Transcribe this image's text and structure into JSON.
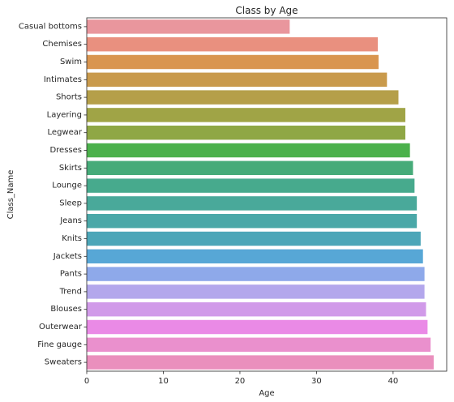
{
  "chart_data": {
    "type": "bar",
    "orientation": "horizontal",
    "title": "Class by Age",
    "xlabel": "Age",
    "ylabel": "Class_Name",
    "xlim": [
      0,
      47
    ],
    "xticks": [
      0,
      10,
      20,
      30,
      40
    ],
    "grid": false,
    "legend": "none",
    "categories": [
      "Casual bottoms",
      "Chemises",
      "Swim",
      "Intimates",
      "Shorts",
      "Layering",
      "Legwear",
      "Dresses",
      "Skirts",
      "Lounge",
      "Sleep",
      "Jeans",
      "Knits",
      "Jackets",
      "Pants",
      "Trend",
      "Blouses",
      "Outerwear",
      "Fine gauge",
      "Sweaters"
    ],
    "values": [
      26.5,
      38.0,
      38.1,
      39.2,
      40.7,
      41.6,
      41.6,
      42.2,
      42.6,
      42.8,
      43.1,
      43.1,
      43.6,
      43.9,
      44.1,
      44.1,
      44.3,
      44.5,
      44.9,
      45.3
    ],
    "colors": [
      "#e9969d",
      "#e9907f",
      "#d9954f",
      "#c99a4c",
      "#b59f49",
      "#a0a446",
      "#8fa745",
      "#4bb14b",
      "#46ab79",
      "#47aa8d",
      "#49a99a",
      "#4aa8a8",
      "#4ca6b8",
      "#57a7d6",
      "#8ea9ea",
      "#b3a7ec",
      "#d19ae9",
      "#ea8ae6",
      "#ea90cd",
      "#ea8fbd"
    ]
  }
}
